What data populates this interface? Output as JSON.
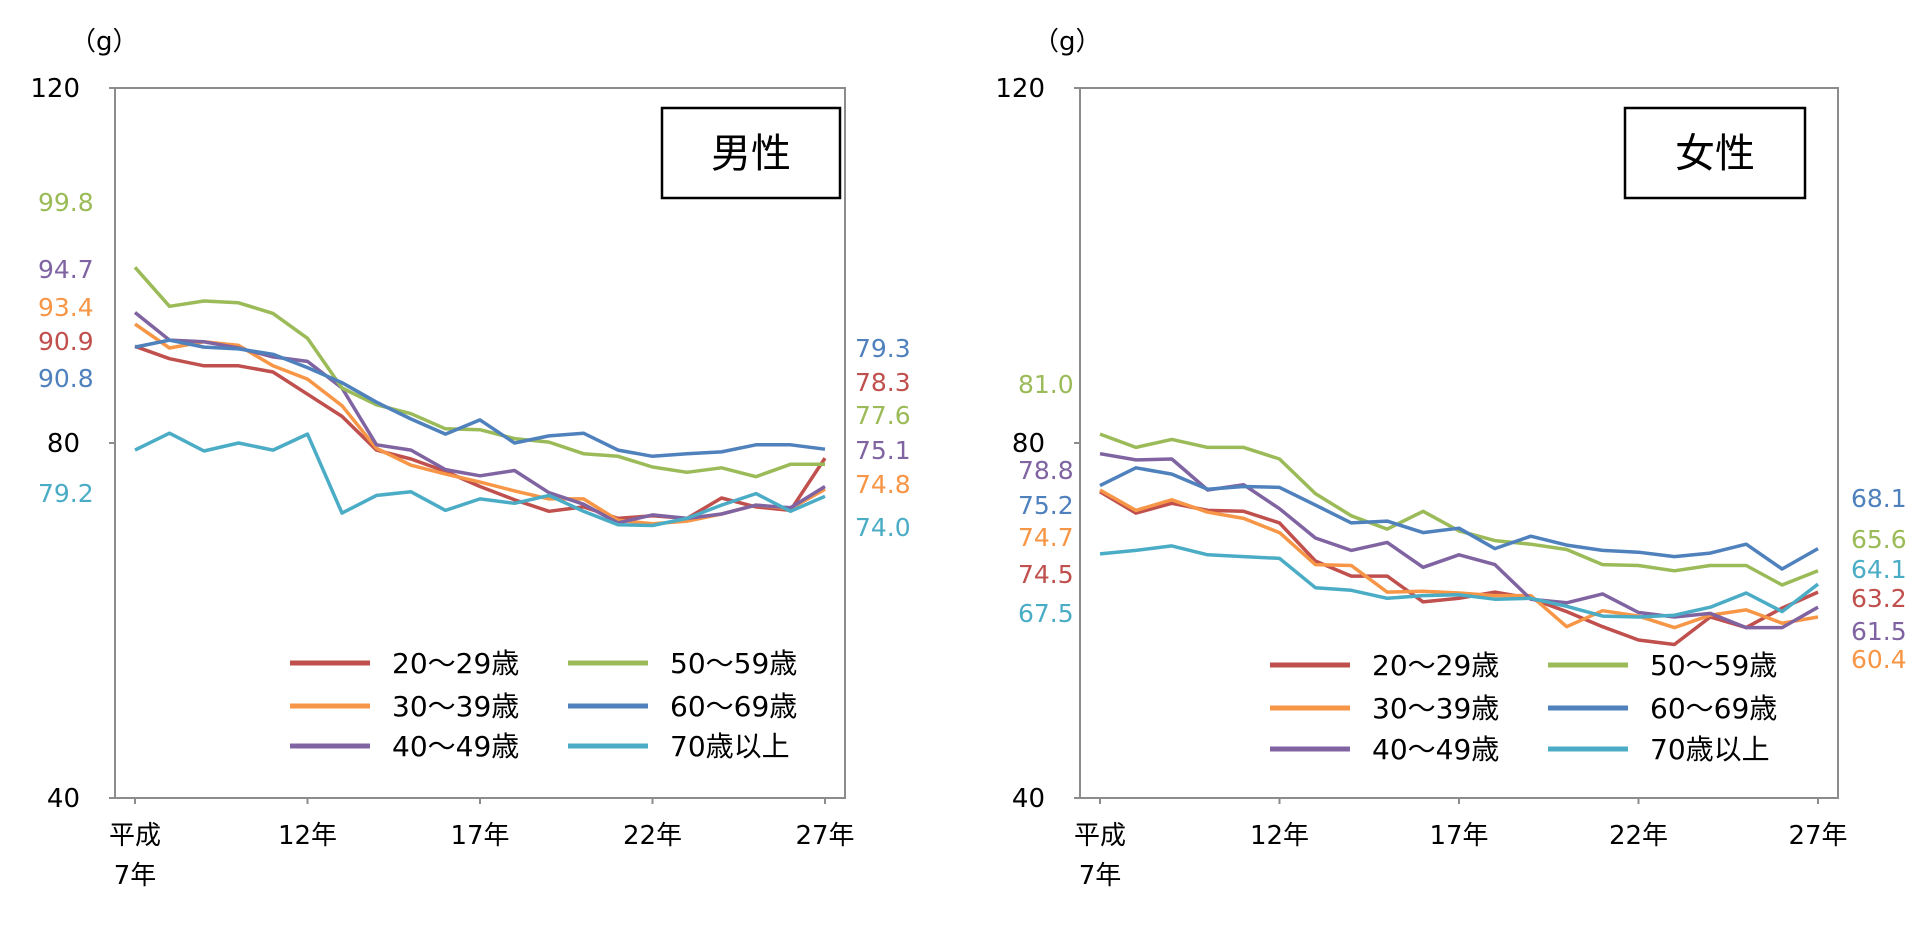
{
  "colors": {
    "s20": "#C0504D",
    "s30": "#F79646",
    "s40": "#8064A2",
    "s50": "#9BBB59",
    "s60": "#4F81BD",
    "s70": "#4BACC6"
  },
  "chart_data": [
    {
      "type": "line",
      "title": "男性",
      "ylabel": "（g）",
      "ylim": [
        40,
        120
      ],
      "yticks": [
        "120",
        "80",
        "40"
      ],
      "x": [
        "平成7年",
        "8年",
        "9年",
        "10年",
        "11年",
        "12年",
        "13年",
        "14年",
        "15年",
        "16年",
        "17年",
        "18年",
        "19年",
        "20年",
        "21年",
        "22年",
        "23年",
        "24年",
        "25年",
        "26年",
        "27年"
      ],
      "xtick_labels": [
        {
          "line1": "平成",
          "line2": "7年"
        },
        {
          "line1": "12年",
          "line2": ""
        },
        {
          "line1": "17年",
          "line2": ""
        },
        {
          "line1": "22年",
          "line2": ""
        },
        {
          "line1": "27年",
          "line2": ""
        }
      ],
      "series": [
        {
          "name": "20～29歳",
          "color_key": "s20",
          "values": [
            90.9,
            89.5,
            88.7,
            88.7,
            88.0,
            85.5,
            83.0,
            79.2,
            78.2,
            76.8,
            75.1,
            73.6,
            72.3,
            72.8,
            71.5,
            71.8,
            71.5,
            73.8,
            72.8,
            72.4,
            78.3
          ]
        },
        {
          "name": "30～39歳",
          "color_key": "s30",
          "values": [
            93.4,
            90.7,
            91.4,
            91.0,
            88.7,
            87.2,
            84.2,
            79.4,
            77.5,
            76.5,
            75.6,
            74.6,
            73.7,
            73.7,
            71.3,
            70.9,
            71.2,
            72.0,
            73.0,
            72.6,
            74.8
          ]
        },
        {
          "name": "40～49歳",
          "color_key": "s40",
          "values": [
            94.7,
            91.6,
            91.4,
            90.7,
            89.7,
            89.2,
            86.2,
            79.8,
            79.2,
            77.0,
            76.3,
            76.9,
            74.4,
            73.1,
            71.0,
            71.9,
            71.5,
            72.0,
            73.0,
            72.7,
            75.1
          ]
        },
        {
          "name": "50～59歳",
          "color_key": "s50",
          "values": [
            99.8,
            95.4,
            96.0,
            95.8,
            94.6,
            91.8,
            86.2,
            84.3,
            83.3,
            81.6,
            81.5,
            80.5,
            80.1,
            78.8,
            78.5,
            77.3,
            76.7,
            77.2,
            76.2,
            77.6,
            77.6
          ]
        },
        {
          "name": "60～69歳",
          "color_key": "s60",
          "values": [
            90.8,
            91.6,
            90.8,
            90.6,
            90.0,
            88.5,
            86.8,
            84.6,
            82.7,
            81.0,
            82.6,
            80.0,
            80.8,
            81.1,
            79.2,
            78.5,
            78.8,
            79.0,
            79.8,
            79.8,
            79.3
          ]
        },
        {
          "name": "70歳以上",
          "color_key": "s70",
          "values": [
            79.2,
            81.1,
            79.1,
            80.0,
            79.2,
            81.0,
            72.1,
            74.1,
            74.5,
            72.4,
            73.7,
            73.2,
            74.1,
            72.3,
            70.8,
            70.7,
            71.5,
            73.0,
            74.3,
            72.3,
            74.0
          ]
        }
      ],
      "end_labels_left": [
        "99.8",
        "94.7",
        "93.4",
        "90.9",
        "90.8",
        "79.2"
      ],
      "end_labels_right": [
        "79.3",
        "78.3",
        "77.6",
        "75.1",
        "74.8",
        "74.0"
      ],
      "legend": "bottom-right"
    },
    {
      "type": "line",
      "title": "女性",
      "ylabel": "（g）",
      "ylim": [
        40,
        120
      ],
      "yticks": [
        "120",
        "80",
        "40"
      ],
      "x": [
        "平成7年",
        "8年",
        "9年",
        "10年",
        "11年",
        "12年",
        "13年",
        "14年",
        "15年",
        "16年",
        "17年",
        "18年",
        "19年",
        "20年",
        "21年",
        "22年",
        "23年",
        "24年",
        "25年",
        "26年",
        "27年"
      ],
      "xtick_labels": [
        {
          "line1": "平成",
          "line2": "7年"
        },
        {
          "line1": "12年",
          "line2": ""
        },
        {
          "line1": "17年",
          "line2": ""
        },
        {
          "line1": "22年",
          "line2": ""
        },
        {
          "line1": "27年",
          "line2": ""
        }
      ],
      "series": [
        {
          "name": "20～29歳",
          "color_key": "s20",
          "values": [
            74.5,
            72.1,
            73.2,
            72.4,
            72.3,
            71.0,
            66.7,
            65.0,
            65.0,
            62.1,
            62.5,
            63.2,
            62.5,
            61.0,
            59.3,
            57.8,
            57.3,
            60.4,
            59.2,
            61.4,
            63.2
          ]
        },
        {
          "name": "30～39歳",
          "color_key": "s30",
          "values": [
            74.7,
            72.4,
            73.6,
            72.2,
            71.5,
            69.9,
            66.3,
            66.2,
            63.2,
            63.3,
            63.1,
            62.8,
            62.8,
            59.3,
            61.1,
            60.5,
            59.2,
            60.6,
            61.2,
            59.7,
            60.4
          ]
        },
        {
          "name": "40～49歳",
          "color_key": "s40",
          "values": [
            78.8,
            78.1,
            78.2,
            74.7,
            75.3,
            72.6,
            69.3,
            67.9,
            68.8,
            66.0,
            67.4,
            66.3,
            62.4,
            62.0,
            63.0,
            60.9,
            60.4,
            60.8,
            59.2,
            59.2,
            61.5
          ]
        },
        {
          "name": "50～59歳",
          "color_key": "s50",
          "values": [
            81.0,
            79.5,
            80.4,
            79.5,
            79.5,
            78.2,
            74.3,
            71.8,
            70.3,
            72.3,
            70.1,
            69.0,
            68.6,
            68.0,
            66.3,
            66.2,
            65.6,
            66.2,
            66.2,
            64.0,
            65.6
          ]
        },
        {
          "name": "60～69歳",
          "color_key": "s60",
          "values": [
            75.2,
            77.2,
            76.5,
            74.8,
            75.1,
            75.0,
            73.0,
            71.0,
            71.2,
            69.9,
            70.4,
            68.1,
            69.5,
            68.5,
            67.9,
            67.7,
            67.2,
            67.6,
            68.6,
            65.8,
            68.1
          ]
        },
        {
          "name": "70歳以上",
          "color_key": "s70",
          "values": [
            67.5,
            67.9,
            68.4,
            67.4,
            67.2,
            67.0,
            63.7,
            63.4,
            62.5,
            62.8,
            62.9,
            62.4,
            62.5,
            61.6,
            60.5,
            60.4,
            60.6,
            61.5,
            63.1,
            61.0,
            64.1
          ]
        }
      ],
      "end_labels_left": [
        "81.0",
        "78.8",
        "75.2",
        "74.7",
        "74.5",
        "67.5"
      ],
      "end_labels_right": [
        "68.1",
        "65.6",
        "64.1",
        "63.2",
        "61.5",
        "60.4"
      ],
      "legend": "bottom-right"
    }
  ]
}
